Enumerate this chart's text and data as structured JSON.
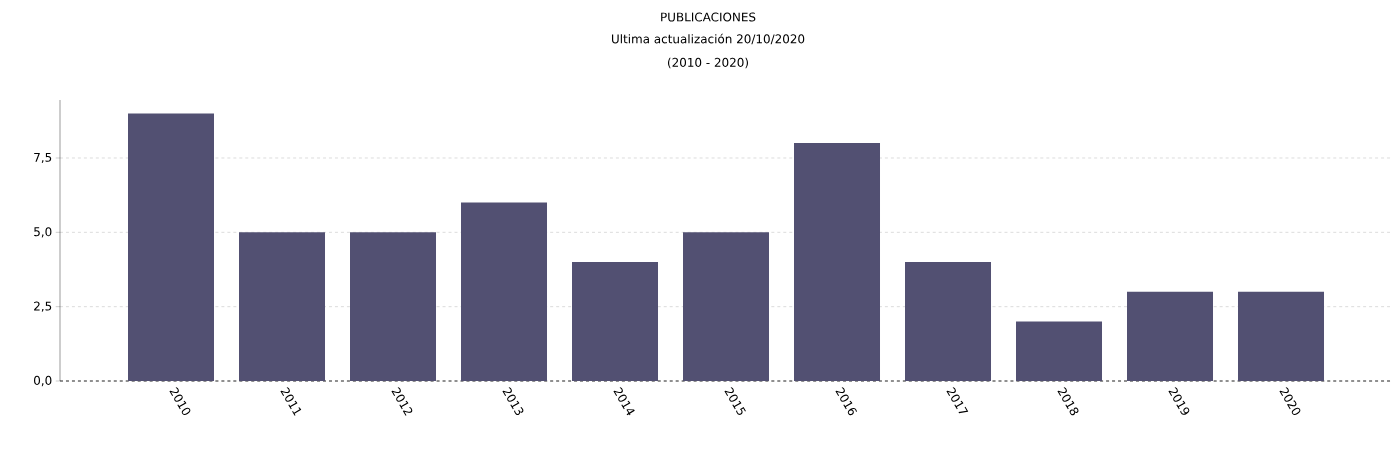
{
  "chart_data": {
    "type": "bar",
    "title": "PUBLICACIONES",
    "subtitle": "Ultima actualización 20/10/2020",
    "annotations": [
      "(2010 - 2020)"
    ],
    "categories": [
      "2010",
      "2011",
      "2012",
      "2013",
      "2014",
      "2015",
      "2016",
      "2017",
      "2018",
      "2019",
      "2020"
    ],
    "values": [
      9,
      5,
      5,
      6,
      4,
      5,
      8,
      4,
      2,
      3,
      3
    ],
    "color": "#525072",
    "ylim": [
      0,
      9.45
    ],
    "yticks": [
      {
        "value": 0,
        "label": "0,0"
      },
      {
        "value": 2.5,
        "label": "2,5"
      },
      {
        "value": 5,
        "label": "5,0"
      },
      {
        "value": 7.5,
        "label": "7,5"
      }
    ],
    "grid": "y"
  }
}
